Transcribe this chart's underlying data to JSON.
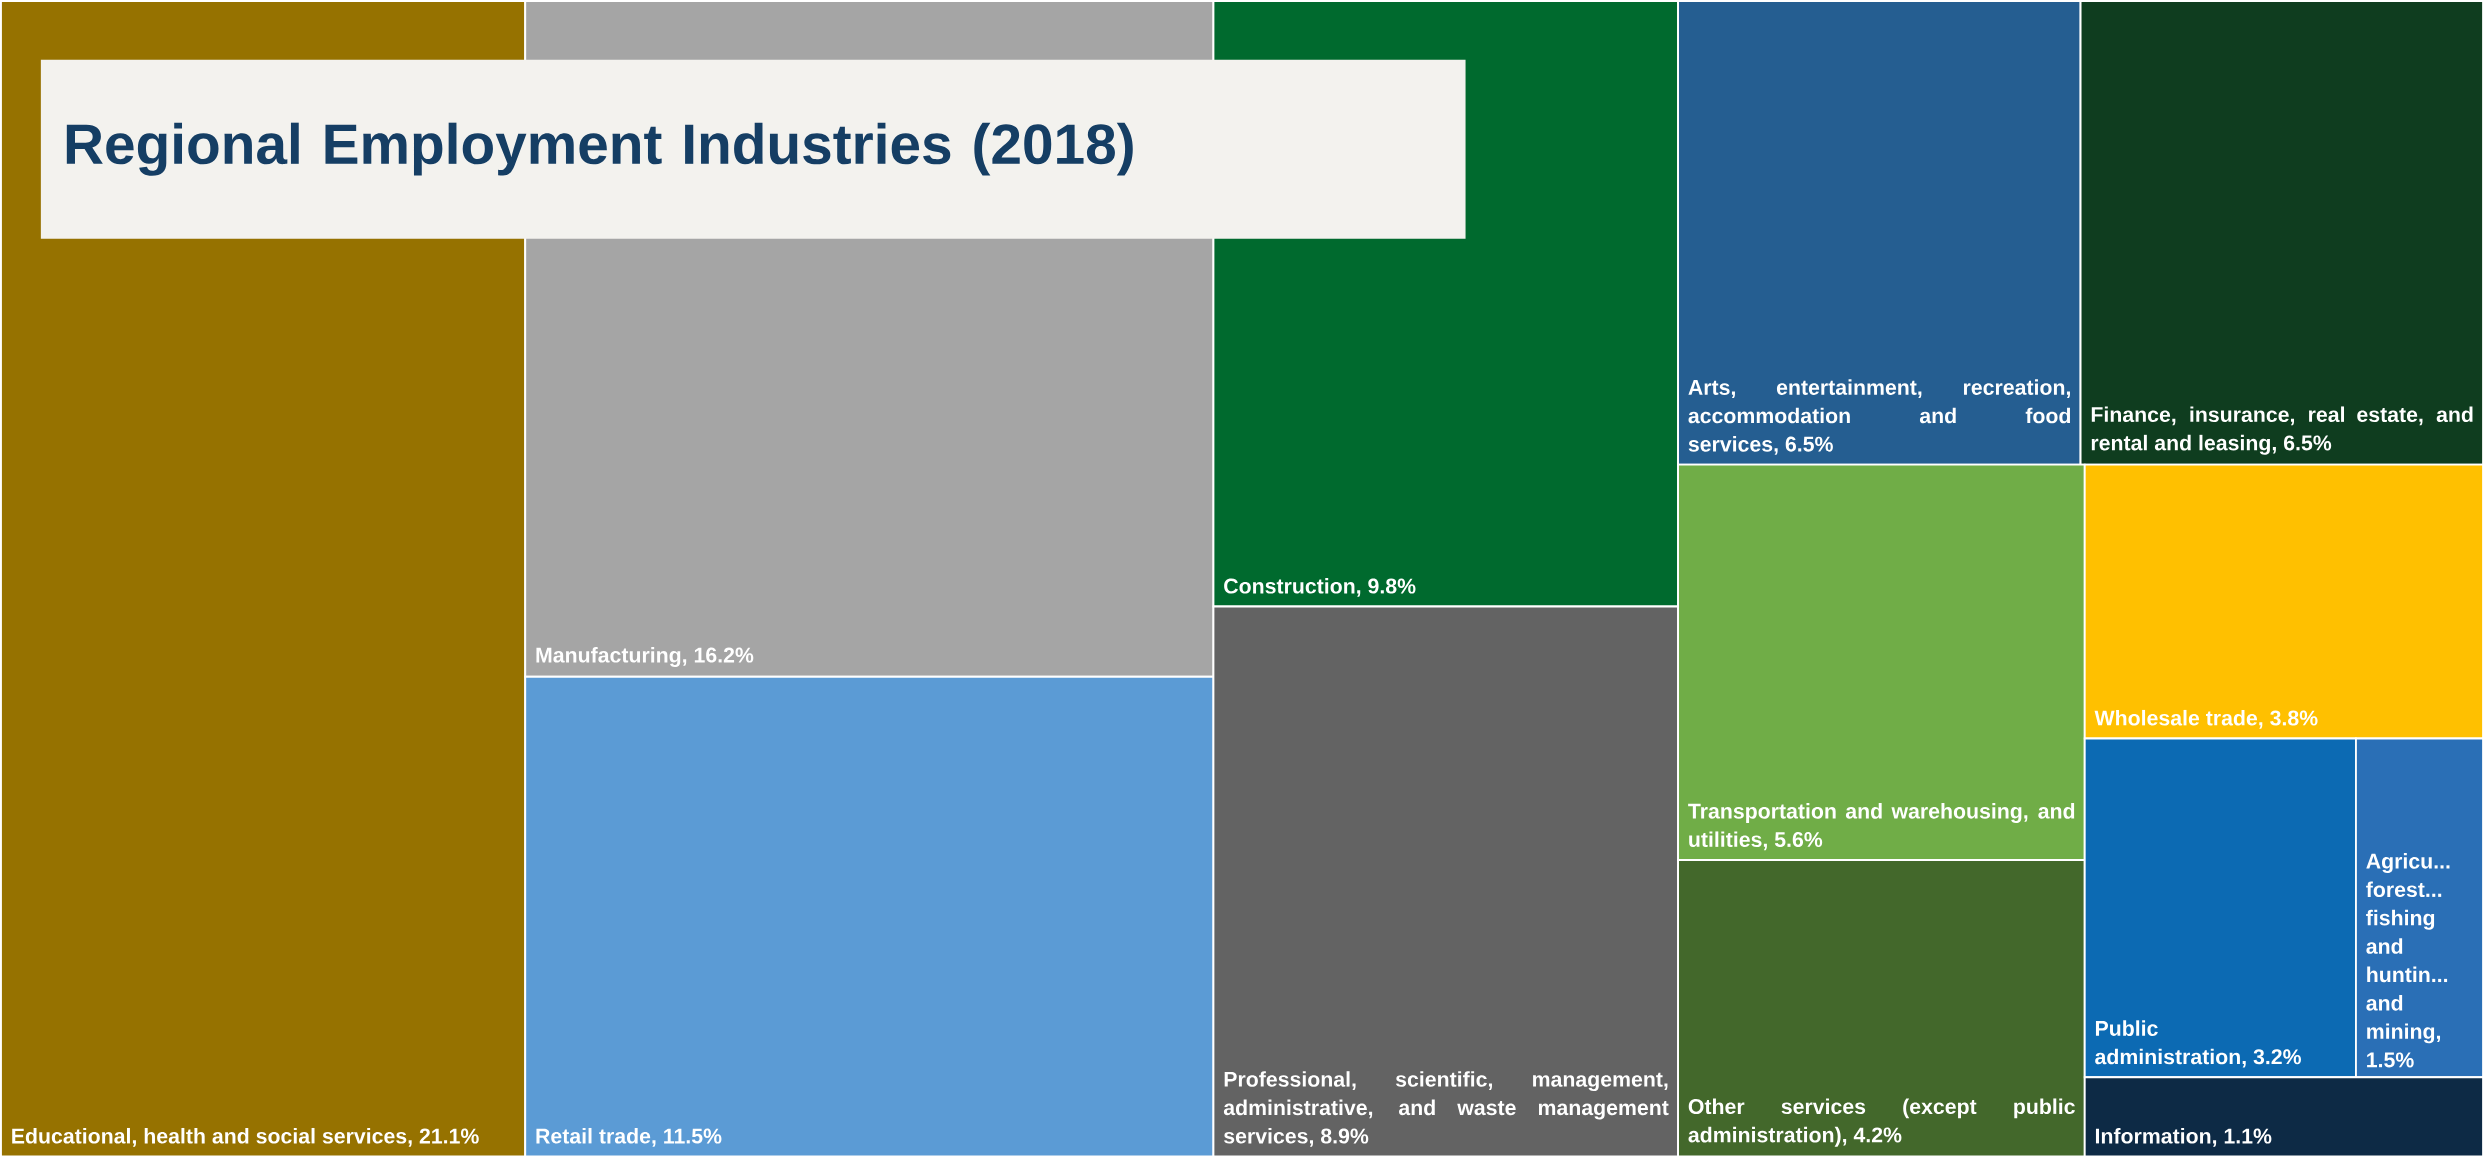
{
  "chart_data": {
    "type": "other",
    "title": "Regional Employment Industries (2018)",
    "categories": [
      "Educational, health and social services",
      "Manufacturing",
      "Retail trade",
      "Construction",
      "Professional, scientific, management, administrative, and waste management services",
      "Arts, entertainment, recreation, accommodation and food services",
      "Finance, insurance, real estate, and rental and leasing",
      "Transportation and warehousing, and utilities",
      "Other services (except public administration)",
      "Wholesale trade",
      "Public administration",
      "Agricu... forest... fishing and huntin... and mining",
      "Information"
    ],
    "values": [
      21.1,
      16.2,
      11.5,
      9.8,
      8.9,
      6.5,
      6.5,
      5.6,
      4.2,
      3.8,
      3.2,
      1.5,
      1.1
    ],
    "value_labels": [
      ", 21.1%",
      ", 16.2%",
      ", 11.5%",
      ", 9.8%",
      ", 8.9%",
      ", 6.5%",
      ", 6.5%",
      ", 5.6%",
      ", 4.2%",
      ", 3.8%",
      ", 3.2%",
      ", 1.5%",
      ", 1.1%"
    ],
    "colors": [
      "#967200",
      "#a5a5a5",
      "#5b9bd5",
      "#006a2e",
      "#636363",
      "#255e91",
      "#0f3d1f",
      "#70ad47",
      "#43682b",
      "#ffc000",
      "#0c6ab3",
      "#2a6fb6",
      "#0d2a45"
    ]
  }
}
